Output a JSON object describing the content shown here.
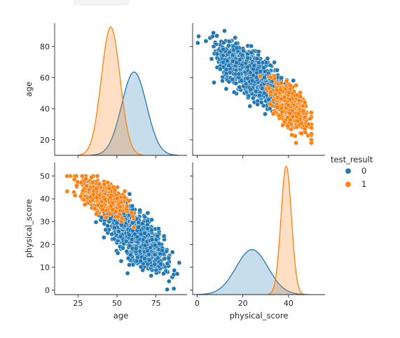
{
  "chart_data": {
    "type": "pairplot",
    "variables": [
      "age",
      "physical_score"
    ],
    "hue": {
      "title": "test_result",
      "levels": [
        "0",
        "1"
      ],
      "colors": {
        "0": "#1f77b4",
        "1": "#ff7f0e"
      }
    },
    "axes": {
      "age": {
        "label": "age",
        "range": [
          10,
          95
        ],
        "ticks": [
          20,
          40,
          60,
          80
        ],
        "xticks": [
          25,
          50,
          75
        ]
      },
      "physical_score": {
        "label": "physical_score",
        "range": [
          -2,
          56
        ],
        "ticks": [
          0,
          10,
          20,
          30,
          40,
          50
        ],
        "xticks": [
          0,
          20,
          40
        ]
      }
    },
    "diagonal_kde": {
      "age": {
        "series": [
          {
            "name": "0",
            "mean": 61,
            "sd": 8,
            "peak_density_pixels": "relative",
            "peak_height_fraction": 0.63
          },
          {
            "name": "1",
            "mean": 46,
            "sd": 6,
            "peak_height_fraction": 0.97
          }
        ]
      },
      "physical_score": {
        "series": [
          {
            "name": "0",
            "mean": 24,
            "sd": 7,
            "peak_height_fraction": 0.34
          },
          {
            "name": "1",
            "mean": 39,
            "sd": 2.3,
            "peak_height_fraction": 0.97
          }
        ]
      }
    },
    "scatter": {
      "series": [
        {
          "name": "0",
          "n": 1400,
          "age_mean": 62,
          "age_sd": 9,
          "physical_score_mean": 24,
          "physical_score_sd": 7,
          "correlation": -0.72
        },
        {
          "name": "1",
          "n": 500,
          "age_mean": 41,
          "age_sd": 7,
          "physical_score_mean": 41,
          "physical_score_sd": 4,
          "correlation": -0.55
        }
      ]
    }
  }
}
